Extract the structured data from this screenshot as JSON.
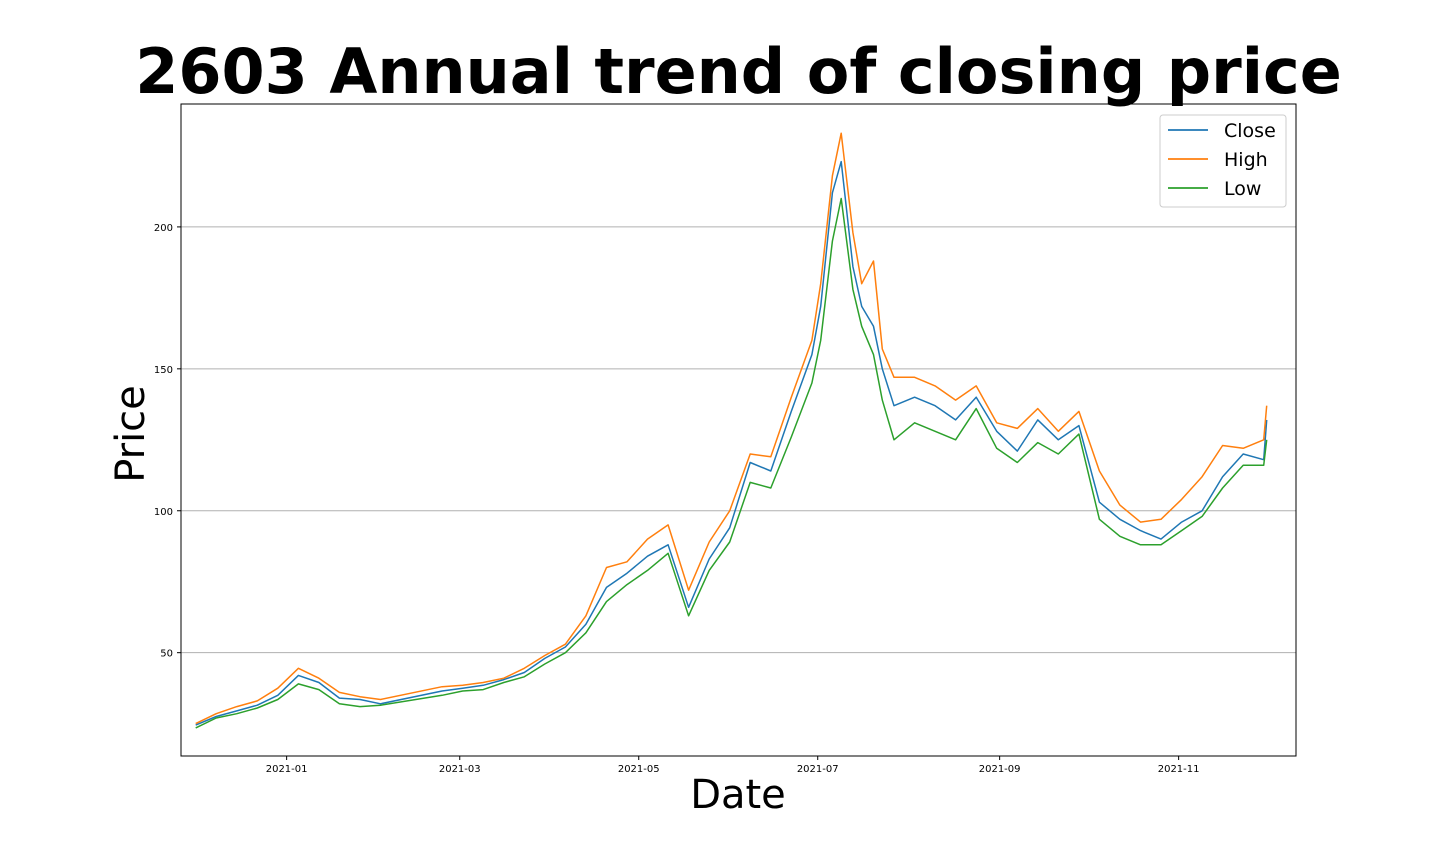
{
  "chart_data": {
    "type": "line",
    "title": "2603 Annual trend of closing price",
    "xlabel": "Date",
    "ylabel": "Price",
    "x_ticks": [
      "2021-01",
      "2021-03",
      "2021-05",
      "2021-07",
      "2021-09",
      "2021-11"
    ],
    "y_ticks": [
      50,
      100,
      150,
      200
    ],
    "xlim": [
      "2020-11-26",
      "2021-12-11"
    ],
    "ylim": [
      13.6,
      243.3
    ],
    "grid": "y",
    "legend_position": "top-right",
    "x": [
      "2020-12-01",
      "2020-12-08",
      "2020-12-15",
      "2020-12-22",
      "2020-12-29",
      "2021-01-05",
      "2021-01-12",
      "2021-01-19",
      "2021-01-26",
      "2021-02-02",
      "2021-02-23",
      "2021-03-02",
      "2021-03-09",
      "2021-03-16",
      "2021-03-23",
      "2021-03-30",
      "2021-04-06",
      "2021-04-13",
      "2021-04-20",
      "2021-04-27",
      "2021-05-04",
      "2021-05-11",
      "2021-05-18",
      "2021-05-25",
      "2021-06-01",
      "2021-06-08",
      "2021-06-15",
      "2021-06-22",
      "2021-06-29",
      "2021-07-02",
      "2021-07-06",
      "2021-07-09",
      "2021-07-13",
      "2021-07-16",
      "2021-07-20",
      "2021-07-23",
      "2021-07-27",
      "2021-08-03",
      "2021-08-10",
      "2021-08-17",
      "2021-08-24",
      "2021-08-31",
      "2021-09-07",
      "2021-09-14",
      "2021-09-21",
      "2021-09-28",
      "2021-10-05",
      "2021-10-12",
      "2021-10-19",
      "2021-10-26",
      "2021-11-02",
      "2021-11-09",
      "2021-11-16",
      "2021-11-23",
      "2021-11-30",
      "2021-12-01"
    ],
    "series": [
      {
        "name": "Close",
        "color": "#1f77b4",
        "values": [
          24.5,
          27.5,
          29.5,
          31.5,
          35,
          42,
          39.5,
          34,
          33.5,
          32,
          36.5,
          37.5,
          38.5,
          40.5,
          43,
          48,
          52,
          60,
          73,
          78,
          84,
          88,
          66,
          83,
          94,
          117,
          114,
          135,
          155,
          172,
          212,
          223,
          186,
          172,
          165,
          150,
          137,
          140,
          137,
          132,
          140,
          128,
          121,
          132,
          125,
          130,
          103,
          97,
          93,
          90,
          96,
          100,
          112,
          120,
          118,
          132
        ]
      },
      {
        "name": "High",
        "color": "#ff7f0e",
        "values": [
          25,
          28.5,
          31,
          33,
          37.5,
          44.5,
          41,
          36,
          34.5,
          33.5,
          38,
          38.5,
          39.5,
          41,
          44.5,
          49,
          53,
          63,
          80,
          82,
          90,
          95,
          72,
          89,
          100,
          120,
          119,
          140,
          160,
          180,
          218,
          233,
          198,
          180,
          188,
          157,
          147,
          147,
          144,
          139,
          144,
          131,
          129,
          136,
          128,
          135,
          114,
          102,
          96,
          97,
          104,
          112,
          123,
          122,
          125,
          137
        ]
      },
      {
        "name": "Low",
        "color": "#2ca02c",
        "values": [
          23.5,
          27,
          28.5,
          30.5,
          33.5,
          39,
          37,
          32,
          31,
          31.5,
          35,
          36.5,
          37,
          39.5,
          41.5,
          46,
          50,
          57,
          68,
          74,
          79,
          85,
          63,
          79,
          89,
          110,
          108,
          126,
          145,
          160,
          195,
          210,
          178,
          165,
          155,
          139,
          125,
          131,
          128,
          125,
          136,
          122,
          117,
          124,
          120,
          127,
          97,
          91,
          88,
          88,
          93,
          98,
          108,
          116,
          116,
          125
        ]
      }
    ]
  }
}
